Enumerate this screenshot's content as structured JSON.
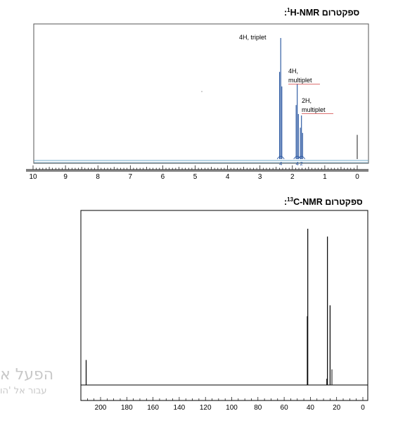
{
  "titles": {
    "hnmr": {
      "prefix": ":",
      "sup": "1",
      "text": "H-NMR ספקטרום"
    },
    "cnmr": {
      "prefix": ":",
      "sup": "13",
      "text": "C-NMR ספקטרום"
    }
  },
  "watermark": {
    "line1": "הפעל א",
    "line2": "עבור אל 'הו"
  },
  "chart_data": [
    {
      "type": "line",
      "title": "H-NMR ספקטרום",
      "xlabel": "",
      "ylabel": "",
      "xlim": [
        10,
        0
      ],
      "reversed_x": true,
      "x_ticks": [
        10,
        9,
        8,
        7,
        6,
        5,
        4,
        3,
        2,
        1,
        0
      ],
      "peaks": [
        {
          "ppm": 2.36,
          "height": 1.0,
          "integration": "4"
        },
        {
          "ppm": 1.85,
          "height": 0.62,
          "integration": "4"
        },
        {
          "ppm": 1.72,
          "height": 0.36,
          "integration": "2"
        },
        {
          "ppm": 0.0,
          "height": 0.2
        }
      ],
      "annotations": [
        {
          "label": "4H, triplet",
          "ppm": 2.36
        },
        {
          "label": "4H,",
          "label2": "multiplet",
          "ppm": 1.85
        },
        {
          "label": "2H,",
          "label2": "multiplet",
          "ppm": 1.72
        }
      ],
      "integration_labels": [
        {
          "ppm": 2.36,
          "text": "4"
        },
        {
          "ppm": 1.85,
          "text": "4"
        },
        {
          "ppm": 1.72,
          "text": "2"
        }
      ],
      "colors": {
        "spectrum": "#1f4e9c",
        "baseline": "#6fa8c8",
        "underline": "#d04040"
      }
    },
    {
      "type": "line",
      "title": "C-NMR ספקטרום",
      "xlabel": "",
      "ylabel": "",
      "xlim": [
        220,
        0
      ],
      "reversed_x": true,
      "x_ticks": [
        200,
        180,
        160,
        140,
        120,
        100,
        80,
        60,
        40,
        20,
        0
      ],
      "peaks": [
        {
          "ppm": 211,
          "height": 0.16
        },
        {
          "ppm": 42,
          "height": 1.0
        },
        {
          "ppm": 27,
          "height": 0.95
        },
        {
          "ppm": 25,
          "height": 0.51
        }
      ],
      "colors": {
        "spectrum": "#000000"
      }
    }
  ]
}
